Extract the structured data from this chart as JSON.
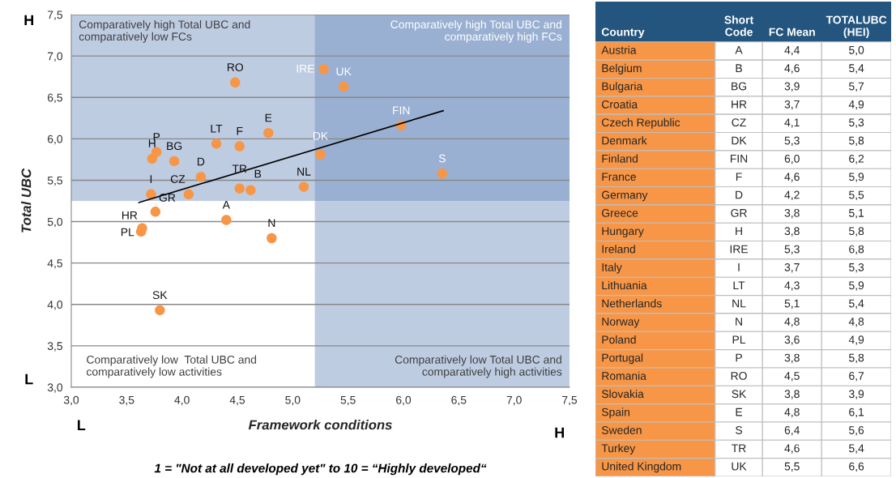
{
  "chart_data": [
    {
      "type": "scatter",
      "xlabel": "Framework conditions",
      "ylabel": "Total UBC",
      "xlim": [
        3.0,
        7.5
      ],
      "ylim": [
        3.0,
        7.5
      ],
      "xticks": [
        {
          "value": 3.0,
          "label": "3,0"
        },
        {
          "value": 3.5,
          "label": "3,5"
        },
        {
          "value": 4.0,
          "label": "4,0"
        },
        {
          "value": 4.5,
          "label": "4,5"
        },
        {
          "value": 5.0,
          "label": "5,0"
        },
        {
          "value": 5.5,
          "label": "5,5"
        },
        {
          "value": 6.0,
          "label": "6,0"
        },
        {
          "value": 6.5,
          "label": "6,5"
        },
        {
          "value": 7.0,
          "label": "7,0"
        },
        {
          "value": 7.5,
          "label": "7,5"
        }
      ],
      "yticks": [
        {
          "value": 3.0,
          "label": "3,0"
        },
        {
          "value": 3.5,
          "label": "3,5"
        },
        {
          "value": 4.0,
          "label": "4,0"
        },
        {
          "value": 4.5,
          "label": "4,5"
        },
        {
          "value": 5.0,
          "label": "5,0"
        },
        {
          "value": 5.5,
          "label": "5,5"
        },
        {
          "value": 6.0,
          "label": "6,0"
        },
        {
          "value": 6.5,
          "label": "6,5"
        },
        {
          "value": 7.0,
          "label": "7,0"
        },
        {
          "value": 7.5,
          "label": "7,5"
        }
      ],
      "grid": "y",
      "legend": false,
      "bands": [
        {
          "axis": "y",
          "from": 5.25,
          "to": 7.5,
          "color": "#6f8fbf"
        },
        {
          "axis": "x",
          "from": 5.2,
          "to": 7.5,
          "color": "#6f8fbf"
        }
      ],
      "series": [
        {
          "type": "scatter",
          "color": "#f79646",
          "marker": "circle",
          "x": [
            4.4,
            4.62,
            3.93,
            3.64,
            4.06,
            5.25,
            5.98,
            4.52,
            4.17,
            3.76,
            3.73,
            5.28,
            3.72,
            4.31,
            5.1,
            4.81,
            3.63,
            3.77,
            4.48,
            3.8,
            4.78,
            6.35,
            4.52,
            5.46
          ],
          "values": [
            5.02,
            5.38,
            5.73,
            4.92,
            5.33,
            5.81,
            6.16,
            5.91,
            5.54,
            5.12,
            5.76,
            6.84,
            5.33,
            5.94,
            5.42,
            4.8,
            4.88,
            5.84,
            6.68,
            3.93,
            6.07,
            5.58,
            5.4,
            6.63
          ],
          "value_labels": [
            "A",
            "B",
            "BG",
            "HR",
            "CZ",
            "DK",
            "FIN",
            "F",
            "D",
            "GR",
            "H",
            "IRE",
            "I",
            "LT",
            "NL",
            "N",
            "PL",
            "P",
            "RO",
            "SK",
            "E",
            "S",
            "TR",
            "UK"
          ]
        },
        {
          "type": "line",
          "color": "#000000",
          "x": [
            3.61,
            6.36
          ],
          "values": [
            5.23,
            6.34
          ]
        }
      ],
      "annotations": [
        "Comparatively high Total UBC and\ncomparatively low FCs",
        "Comparatively high Total UBC and\ncomparatively high FCs",
        "Comparatively low  Total UBC and\ncomparatively low activities",
        "Comparatively low Total UBC and\ncomparatively high activities",
        "H",
        "L",
        "L",
        "H",
        "1 = \"Not at all developed yet\" to 10 = “Highly developed“"
      ]
    },
    {
      "type": "other",
      "categories": [
        "Country",
        "Short\nCode",
        "FC Mean",
        "TOTALUBC\n(HEI)"
      ],
      "cell_labels": [
        [
          "Austria",
          "A",
          "4,4",
          "5,0"
        ],
        [
          "Belgium",
          "B",
          "4,6",
          "5,4"
        ],
        [
          "Bulgaria",
          "BG",
          "3,9",
          "5,7"
        ],
        [
          "Croatia",
          "HR",
          "3,7",
          "4,9"
        ],
        [
          "Czech Republic",
          "CZ",
          "4,1",
          "5,3"
        ],
        [
          "Denmark",
          "DK",
          "5,3",
          "5,8"
        ],
        [
          "Finland",
          "FIN",
          "6,0",
          "6,2"
        ],
        [
          "France",
          "F",
          "4,6",
          "5,9"
        ],
        [
          "Germany",
          "D",
          "4,2",
          "5,5"
        ],
        [
          "Greece",
          "GR",
          "3,8",
          "5,1"
        ],
        [
          "Hungary",
          "H",
          "3,8",
          "5,8"
        ],
        [
          "Ireland",
          "IRE",
          "5,3",
          "6,8"
        ],
        [
          "Italy",
          "I",
          "3,7",
          "5,3"
        ],
        [
          "Lithuania",
          "LT",
          "4,3",
          "5,9"
        ],
        [
          "Netherlands",
          "NL",
          "5,1",
          "5,4"
        ],
        [
          "Norway",
          "N",
          "4,8",
          "4,8"
        ],
        [
          "Poland",
          "PL",
          "3,6",
          "4,9"
        ],
        [
          "Portugal",
          "P",
          "3,8",
          "5,8"
        ],
        [
          "Romania",
          "RO",
          "4,5",
          "6,7"
        ],
        [
          "Slovakia",
          "SK",
          "3,8",
          "3,9"
        ],
        [
          "Spain",
          "E",
          "4,8",
          "6,1"
        ],
        [
          "Sweden",
          "S",
          "6,4",
          "5,6"
        ],
        [
          "Turkey",
          "TR",
          "4,6",
          "5,4"
        ],
        [
          "United Kingdom",
          "UK",
          "5,5",
          "6,6"
        ]
      ]
    }
  ]
}
